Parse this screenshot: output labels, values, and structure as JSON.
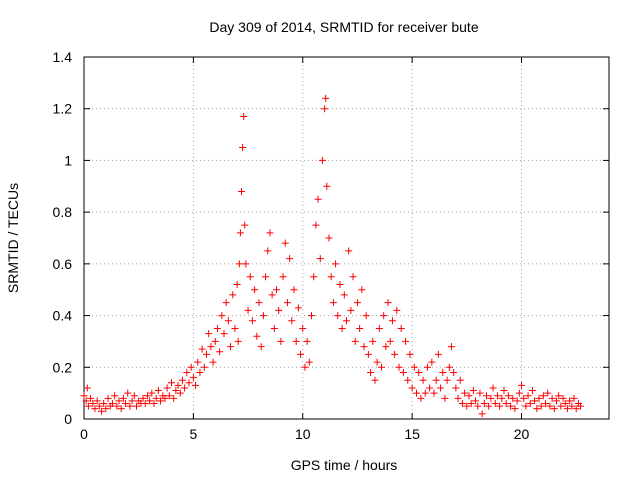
{
  "chart_data": {
    "type": "scatter",
    "title": "Day 309 of 2014, SRMTID for receiver bute",
    "xlabel": "GPS time / hours",
    "ylabel": "SRMTID / TECUs",
    "xlim": [
      0,
      24
    ],
    "ylim": [
      0,
      1.4
    ],
    "xticks": [
      "0",
      "5",
      "10",
      "15",
      "20"
    ],
    "xtick_values": [
      0,
      5,
      10,
      15,
      20
    ],
    "yticks": [
      "0",
      "0.2",
      "0.4",
      "0.6",
      "0.8",
      "1",
      "1.2",
      "1.4"
    ],
    "ytick_values": [
      0,
      0.2,
      0.4,
      0.6,
      0.8,
      1.0,
      1.2,
      1.4
    ],
    "grid": true,
    "marker": "+",
    "color": "#ff0000",
    "series": [
      {
        "name": "SRMTID",
        "points": [
          [
            0.0,
            0.09
          ],
          [
            0.1,
            0.07
          ],
          [
            0.15,
            0.12
          ],
          [
            0.2,
            0.05
          ],
          [
            0.3,
            0.08
          ],
          [
            0.4,
            0.06
          ],
          [
            0.5,
            0.04
          ],
          [
            0.6,
            0.07
          ],
          [
            0.7,
            0.05
          ],
          [
            0.8,
            0.03
          ],
          [
            0.9,
            0.06
          ],
          [
            1.0,
            0.04
          ],
          [
            1.1,
            0.08
          ],
          [
            1.2,
            0.05
          ],
          [
            1.3,
            0.06
          ],
          [
            1.4,
            0.09
          ],
          [
            1.5,
            0.05
          ],
          [
            1.6,
            0.07
          ],
          [
            1.7,
            0.04
          ],
          [
            1.8,
            0.08
          ],
          [
            1.9,
            0.06
          ],
          [
            2.0,
            0.1
          ],
          [
            2.1,
            0.05
          ],
          [
            2.2,
            0.07
          ],
          [
            2.3,
            0.09
          ],
          [
            2.4,
            0.05
          ],
          [
            2.5,
            0.07
          ],
          [
            2.6,
            0.06
          ],
          [
            2.7,
            0.08
          ],
          [
            2.8,
            0.06
          ],
          [
            2.9,
            0.09
          ],
          [
            3.0,
            0.07
          ],
          [
            3.1,
            0.1
          ],
          [
            3.2,
            0.06
          ],
          [
            3.3,
            0.08
          ],
          [
            3.4,
            0.11
          ],
          [
            3.5,
            0.07
          ],
          [
            3.6,
            0.09
          ],
          [
            3.7,
            0.08
          ],
          [
            3.8,
            0.12
          ],
          [
            3.9,
            0.09
          ],
          [
            4.0,
            0.14
          ],
          [
            4.1,
            0.08
          ],
          [
            4.2,
            0.11
          ],
          [
            4.3,
            0.13
          ],
          [
            4.4,
            0.1
          ],
          [
            4.5,
            0.15
          ],
          [
            4.6,
            0.12
          ],
          [
            4.7,
            0.18
          ],
          [
            4.8,
            0.14
          ],
          [
            4.9,
            0.2
          ],
          [
            5.0,
            0.16
          ],
          [
            5.1,
            0.13
          ],
          [
            5.2,
            0.22
          ],
          [
            5.3,
            0.18
          ],
          [
            5.4,
            0.27
          ],
          [
            5.5,
            0.2
          ],
          [
            5.6,
            0.25
          ],
          [
            5.7,
            0.33
          ],
          [
            5.8,
            0.28
          ],
          [
            5.9,
            0.22
          ],
          [
            6.0,
            0.3
          ],
          [
            6.1,
            0.35
          ],
          [
            6.2,
            0.26
          ],
          [
            6.3,
            0.4
          ],
          [
            6.4,
            0.33
          ],
          [
            6.5,
            0.45
          ],
          [
            6.6,
            0.38
          ],
          [
            6.7,
            0.28
          ],
          [
            6.8,
            0.48
          ],
          [
            6.9,
            0.35
          ],
          [
            7.0,
            0.52
          ],
          [
            7.05,
            0.3
          ],
          [
            7.1,
            0.6
          ],
          [
            7.15,
            0.72
          ],
          [
            7.2,
            0.88
          ],
          [
            7.25,
            1.05
          ],
          [
            7.3,
            1.17
          ],
          [
            7.35,
            0.75
          ],
          [
            7.4,
            0.6
          ],
          [
            7.5,
            0.42
          ],
          [
            7.6,
            0.55
          ],
          [
            7.7,
            0.38
          ],
          [
            7.8,
            0.5
          ],
          [
            7.9,
            0.32
          ],
          [
            8.0,
            0.45
          ],
          [
            8.1,
            0.28
          ],
          [
            8.2,
            0.4
          ],
          [
            8.3,
            0.55
          ],
          [
            8.4,
            0.65
          ],
          [
            8.5,
            0.72
          ],
          [
            8.6,
            0.48
          ],
          [
            8.7,
            0.35
          ],
          [
            8.8,
            0.5
          ],
          [
            8.9,
            0.42
          ],
          [
            9.0,
            0.3
          ],
          [
            9.1,
            0.55
          ],
          [
            9.2,
            0.68
          ],
          [
            9.3,
            0.45
          ],
          [
            9.4,
            0.62
          ],
          [
            9.5,
            0.38
          ],
          [
            9.6,
            0.5
          ],
          [
            9.7,
            0.3
          ],
          [
            9.8,
            0.43
          ],
          [
            9.9,
            0.25
          ],
          [
            10.0,
            0.35
          ],
          [
            10.1,
            0.2
          ],
          [
            10.2,
            0.3
          ],
          [
            10.3,
            0.22
          ],
          [
            10.4,
            0.4
          ],
          [
            10.5,
            0.55
          ],
          [
            10.6,
            0.75
          ],
          [
            10.7,
            0.85
          ],
          [
            10.8,
            0.62
          ],
          [
            10.9,
            1.0
          ],
          [
            11.0,
            1.2
          ],
          [
            11.05,
            1.24
          ],
          [
            11.1,
            0.9
          ],
          [
            11.2,
            0.7
          ],
          [
            11.3,
            0.55
          ],
          [
            11.4,
            0.45
          ],
          [
            11.5,
            0.6
          ],
          [
            11.6,
            0.4
          ],
          [
            11.7,
            0.52
          ],
          [
            11.8,
            0.35
          ],
          [
            11.9,
            0.48
          ],
          [
            12.0,
            0.38
          ],
          [
            12.1,
            0.65
          ],
          [
            12.2,
            0.42
          ],
          [
            12.3,
            0.55
          ],
          [
            12.4,
            0.3
          ],
          [
            12.5,
            0.45
          ],
          [
            12.6,
            0.35
          ],
          [
            12.7,
            0.5
          ],
          [
            12.8,
            0.28
          ],
          [
            12.9,
            0.4
          ],
          [
            13.0,
            0.25
          ],
          [
            13.1,
            0.18
          ],
          [
            13.2,
            0.3
          ],
          [
            13.3,
            0.15
          ],
          [
            13.4,
            0.22
          ],
          [
            13.5,
            0.35
          ],
          [
            13.6,
            0.2
          ],
          [
            13.7,
            0.4
          ],
          [
            13.8,
            0.28
          ],
          [
            13.9,
            0.45
          ],
          [
            14.0,
            0.3
          ],
          [
            14.1,
            0.38
          ],
          [
            14.2,
            0.25
          ],
          [
            14.3,
            0.42
          ],
          [
            14.4,
            0.2
          ],
          [
            14.5,
            0.35
          ],
          [
            14.6,
            0.18
          ],
          [
            14.7,
            0.3
          ],
          [
            14.8,
            0.15
          ],
          [
            14.9,
            0.25
          ],
          [
            15.0,
            0.12
          ],
          [
            15.1,
            0.2
          ],
          [
            15.2,
            0.1
          ],
          [
            15.3,
            0.18
          ],
          [
            15.4,
            0.08
          ],
          [
            15.5,
            0.15
          ],
          [
            15.6,
            0.1
          ],
          [
            15.7,
            0.2
          ],
          [
            15.8,
            0.12
          ],
          [
            15.9,
            0.22
          ],
          [
            16.0,
            0.1
          ],
          [
            16.1,
            0.15
          ],
          [
            16.2,
            0.25
          ],
          [
            16.3,
            0.12
          ],
          [
            16.4,
            0.18
          ],
          [
            16.5,
            0.08
          ],
          [
            16.6,
            0.15
          ],
          [
            16.7,
            0.2
          ],
          [
            16.8,
            0.28
          ],
          [
            16.9,
            0.18
          ],
          [
            17.0,
            0.12
          ],
          [
            17.1,
            0.08
          ],
          [
            17.2,
            0.15
          ],
          [
            17.3,
            0.06
          ],
          [
            17.4,
            0.1
          ],
          [
            17.5,
            0.05
          ],
          [
            17.6,
            0.09
          ],
          [
            17.7,
            0.06
          ],
          [
            17.8,
            0.11
          ],
          [
            17.9,
            0.07
          ],
          [
            18.0,
            0.05
          ],
          [
            18.1,
            0.1
          ],
          [
            18.2,
            0.02
          ],
          [
            18.3,
            0.06
          ],
          [
            18.4,
            0.09
          ],
          [
            18.5,
            0.05
          ],
          [
            18.6,
            0.08
          ],
          [
            18.7,
            0.12
          ],
          [
            18.8,
            0.06
          ],
          [
            18.9,
            0.09
          ],
          [
            19.0,
            0.05
          ],
          [
            19.1,
            0.08
          ],
          [
            19.2,
            0.11
          ],
          [
            19.3,
            0.06
          ],
          [
            19.4,
            0.09
          ],
          [
            19.5,
            0.05
          ],
          [
            19.6,
            0.08
          ],
          [
            19.7,
            0.04
          ],
          [
            19.8,
            0.07
          ],
          [
            19.9,
            0.1
          ],
          [
            20.0,
            0.13
          ],
          [
            20.1,
            0.08
          ],
          [
            20.2,
            0.05
          ],
          [
            20.3,
            0.09
          ],
          [
            20.4,
            0.06
          ],
          [
            20.5,
            0.11
          ],
          [
            20.6,
            0.07
          ],
          [
            20.7,
            0.04
          ],
          [
            20.8,
            0.08
          ],
          [
            20.9,
            0.05
          ],
          [
            21.0,
            0.09
          ],
          [
            21.1,
            0.06
          ],
          [
            21.2,
            0.1
          ],
          [
            21.3,
            0.05
          ],
          [
            21.4,
            0.08
          ],
          [
            21.5,
            0.04
          ],
          [
            21.6,
            0.07
          ],
          [
            21.7,
            0.09
          ],
          [
            21.8,
            0.05
          ],
          [
            21.9,
            0.08
          ],
          [
            22.0,
            0.06
          ],
          [
            22.1,
            0.04
          ],
          [
            22.2,
            0.07
          ],
          [
            22.3,
            0.05
          ],
          [
            22.4,
            0.08
          ],
          [
            22.5,
            0.04
          ],
          [
            22.6,
            0.06
          ],
          [
            22.7,
            0.05
          ]
        ]
      }
    ]
  }
}
